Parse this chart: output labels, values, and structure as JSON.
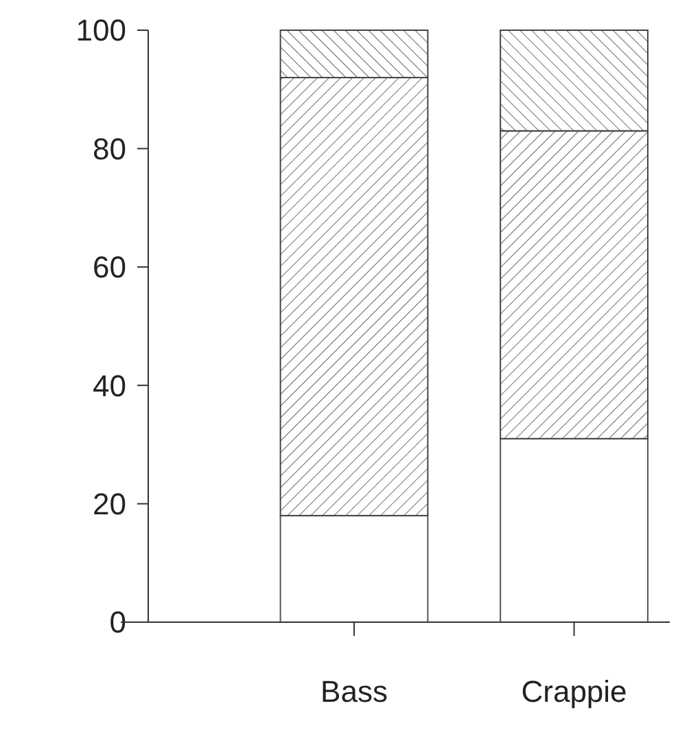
{
  "chart_data": {
    "type": "bar",
    "stacked": true,
    "categories": [
      null,
      "Bass",
      "Crappie"
    ],
    "series": [
      {
        "color": "#ffffff",
        "values": [
          null,
          18,
          31
        ]
      },
      {
        "color": "#444444",
        "values": [
          null,
          74,
          52
        ]
      },
      {
        "color": "#444444",
        "values": [
          null,
          8,
          17
        ]
      }
    ],
    "ylim": [
      0,
      100
    ],
    "yticks": [
      0,
      20,
      40,
      60,
      80,
      100
    ]
  }
}
